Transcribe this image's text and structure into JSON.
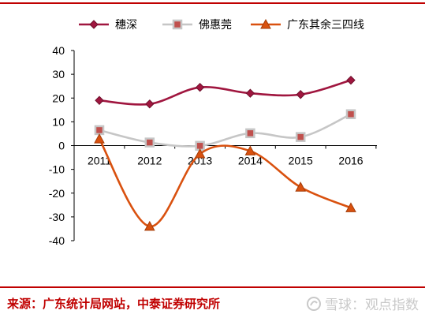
{
  "chart_data": {
    "type": "line",
    "categories": [
      "2011",
      "2012",
      "2013",
      "2014",
      "2015",
      "2016"
    ],
    "series": [
      {
        "name": "穗深",
        "values": [
          19,
          17.5,
          24.5,
          22,
          21.5,
          27.5
        ],
        "color": "#a0163f",
        "marker": "diamond"
      },
      {
        "name": "佛惠莞",
        "values": [
          6.5,
          1.3,
          -0.1,
          5.2,
          3.6,
          13.2
        ],
        "color": "#c6c6c6",
        "marker": "square",
        "marker_fill": "#c0504d"
      },
      {
        "name": "广东其余三四线",
        "values": [
          2.8,
          -34,
          -3.5,
          -2.3,
          -17.5,
          -26.2
        ],
        "color": "#d9510f",
        "marker": "triangle"
      }
    ],
    "y_ticks": [
      "40",
      "30",
      "20",
      "10",
      "0",
      "-10",
      "-20",
      "-30",
      "-40"
    ],
    "ylim": [
      -40,
      40
    ],
    "grid": false,
    "legend_position": "top",
    "smooth": true
  },
  "source": "来源：广东统计局网站，中泰证券研究所",
  "watermark": "雪球：观点指数"
}
